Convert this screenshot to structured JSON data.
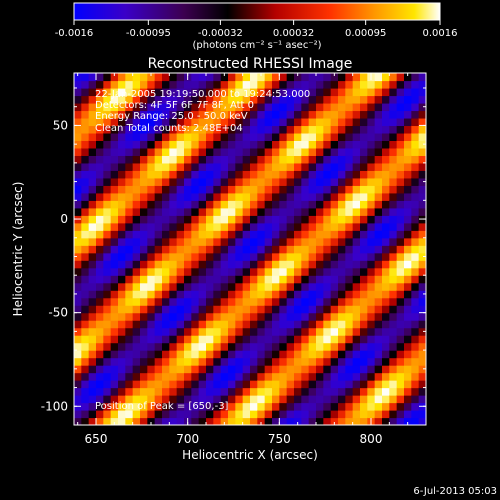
{
  "chart_data": {
    "type": "heatmap",
    "title": "Reconstructed RHESSI Image",
    "xlabel": "Heliocentric X (arcsec)",
    "ylabel": "Heliocentric Y (arcsec)",
    "xlim": [
      638,
      830
    ],
    "ylim": [
      -110,
      78
    ],
    "x_ticks": [
      650,
      700,
      750,
      800
    ],
    "y_ticks": [
      -100,
      -50,
      0,
      50
    ],
    "colorbar": {
      "min": -0.0016,
      "max": 0.0016,
      "tick_labels": [
        "-0.0016",
        "-0.00095",
        "-0.00032",
        "0.00032",
        "0.00095",
        "0.0016"
      ],
      "units": "(photons cm⁻² s⁻¹ asec⁻²)",
      "colormap": [
        "#0000ff",
        "#4b0082",
        "#000000",
        "#b40000",
        "#ff3200",
        "#ff9600",
        "#ffe600",
        "#ffffff"
      ]
    },
    "annotations": [
      "22-Jan-2005 19:19:50.000 to 19:24:53.000",
      "Detectors: 4F 5F 6F 7F 8F, Att 0",
      "Energy Range: 25.0 - 50.0 keV",
      "Clean     Total counts: 2.48E+04",
      "Position of Peak = [650,-3]"
    ],
    "peak_position": [
      650,
      -3
    ],
    "fringe_pattern": {
      "description": "diagonal fringe pattern of alternating bright (yellow/white) and dark (blue) bands",
      "orientation_deg": 42,
      "period_arcsec": 43,
      "cell_size_arcsec": 4
    }
  },
  "footer": {
    "timestamp": "6-Jul-2013 05:03"
  }
}
